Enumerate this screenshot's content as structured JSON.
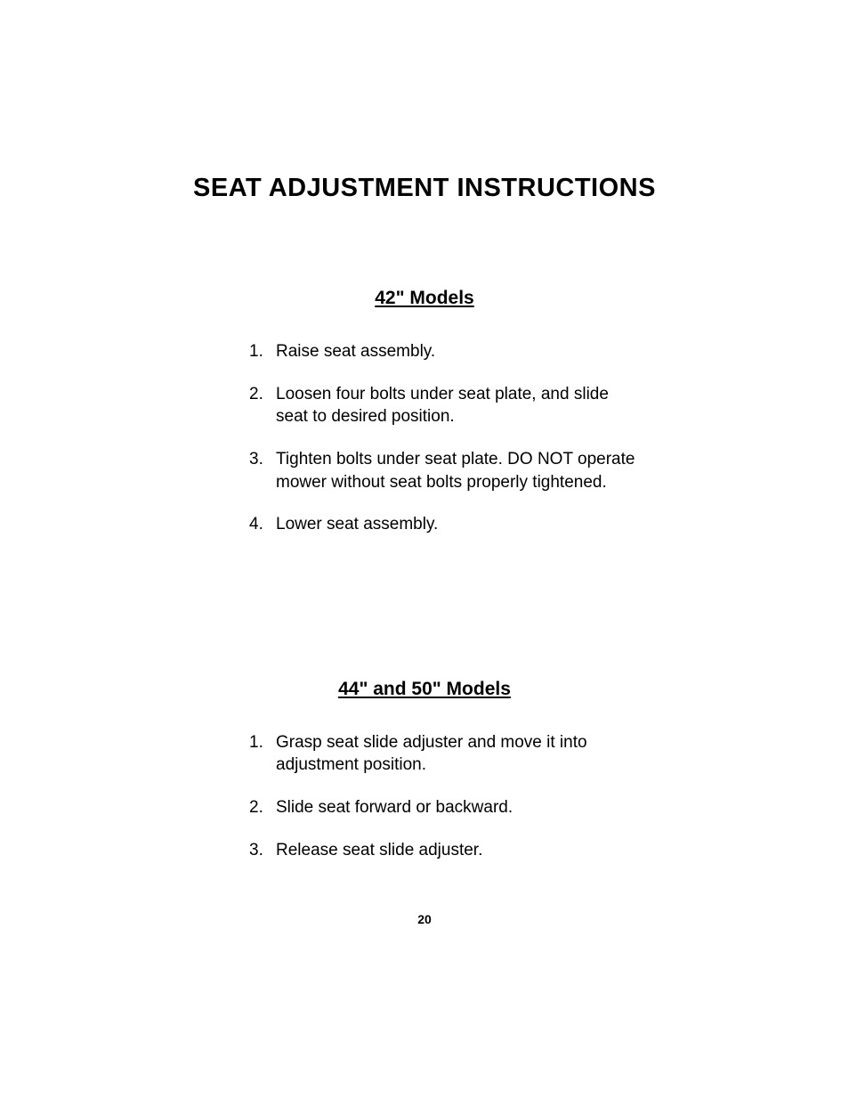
{
  "title": "SEAT ADJUSTMENT INSTRUCTIONS",
  "section1": {
    "heading": "42\"  Models",
    "items": [
      {
        "num": "1.",
        "text": "Raise seat assembly."
      },
      {
        "num": "2.",
        "text": "Loosen four bolts under seat plate, and slide seat to desired position."
      },
      {
        "num": "3.",
        "text": "Tighten bolts under seat plate.  DO NOT operate mower without seat bolts properly tightened."
      },
      {
        "num": "4.",
        "text": "Lower seat assembly."
      }
    ]
  },
  "section2": {
    "heading": "44\"  and  50\"  Models",
    "items": [
      {
        "num": "1.",
        "text": "Grasp seat slide adjuster and move it into adjustment position."
      },
      {
        "num": "2.",
        "text": "Slide seat forward or backward."
      },
      {
        "num": "3.",
        "text": "Release seat slide adjuster."
      }
    ]
  },
  "pageNumber": "20",
  "style": {
    "bgColor": "#ffffff",
    "textColor": "#000000",
    "titleFontSize": 29,
    "headingFontSize": 21,
    "bodyFontSize": 19,
    "pageNumFontSize": 14
  }
}
